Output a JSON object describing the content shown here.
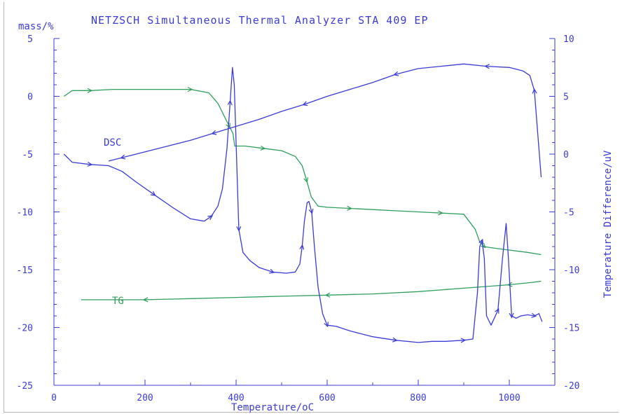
{
  "chart_data": {
    "type": "line",
    "title": "NETZSCH Simultaneous Thermal Analyzer STA 409 EP",
    "xlabel": "Temperature/oC",
    "ylabel_left": "mass/%",
    "ylabel_right": "Temperature Difference/uV",
    "xlim": [
      0,
      1100
    ],
    "ylim_left": [
      -25,
      5
    ],
    "ylim_right": [
      -20,
      10
    ],
    "x_ticks": [
      "0",
      "200",
      "400",
      "600",
      "800",
      "1000"
    ],
    "y_left_ticks": [
      "5",
      "0",
      "-5",
      "-10",
      "-15",
      "-20",
      "-25"
    ],
    "y_right_ticks": [
      "10",
      "5",
      "0",
      "-5",
      "-10",
      "-15",
      "-20"
    ],
    "grid": false,
    "colors": {
      "tg": "#2e9f5c",
      "dsc": "#3b3bd6",
      "axis": "#3b3bd6"
    },
    "annotations": [
      "DSC",
      "TG"
    ],
    "series": [
      {
        "name": "TG",
        "axis": "left",
        "segments": [
          {
            "x": [
              22,
              40,
              80,
              130,
              200,
              240,
              300,
              340,
              360,
              375,
              385,
              393,
              397,
              420,
              460,
              500,
              530,
              545,
              555,
              565,
              580,
              600,
              650,
              700,
              750,
              800,
              850,
              900,
              925,
              935,
              945,
              960,
              1000,
              1040,
              1070
            ],
            "y": [
              0.0,
              0.5,
              0.5,
              0.6,
              0.6,
              0.6,
              0.6,
              0.3,
              -0.6,
              -1.8,
              -2.6,
              -3.2,
              -4.3,
              -4.3,
              -4.5,
              -4.7,
              -5.2,
              -6.0,
              -7.3,
              -8.7,
              -9.5,
              -9.6,
              -9.7,
              -9.8,
              -9.9,
              -10.0,
              -10.1,
              -10.2,
              -11.5,
              -12.6,
              -13.0,
              -13.1,
              -13.3,
              -13.5,
              -13.7
            ]
          },
          {
            "x": [
              1070,
              1050,
              1000,
              900,
              800,
              700,
              600,
              500,
              400,
              300,
              200,
              100,
              60
            ],
            "y": [
              -16.0,
              -16.1,
              -16.3,
              -16.6,
              -16.9,
              -17.1,
              -17.2,
              -17.3,
              -17.4,
              -17.5,
              -17.6,
              -17.6,
              -17.6
            ]
          }
        ]
      },
      {
        "name": "DSC",
        "axis": "right",
        "segments": [
          {
            "x": [
              22,
              40,
              80,
              120,
              150,
              180,
              220,
              260,
              300,
              330,
              345,
              360,
              370,
              380,
              387,
              392,
              396,
              400,
              406,
              415,
              430,
              450,
              480,
              510,
              530,
              540,
              545,
              550,
              556,
              560,
              566,
              572,
              580,
              590,
              600,
              620,
              650,
              700,
              750,
              800,
              830,
              860,
              900,
              920,
              930,
              935,
              940,
              945,
              950,
              960,
              975,
              985,
              993,
              998,
              1005,
              1015,
              1025,
              1040,
              1055,
              1065,
              1072
            ],
            "y": [
              0.0,
              -0.7,
              -0.9,
              -1.0,
              -1.5,
              -2.4,
              -3.5,
              -4.6,
              -5.6,
              -5.8,
              -5.4,
              -4.5,
              -3.0,
              0.5,
              4.5,
              7.5,
              6.0,
              1.0,
              -6.5,
              -8.5,
              -9.2,
              -9.8,
              -10.2,
              -10.3,
              -10.2,
              -9.5,
              -8.0,
              -5.8,
              -4.2,
              -4.1,
              -5.0,
              -8.0,
              -11.5,
              -13.8,
              -14.8,
              -14.9,
              -15.3,
              -15.8,
              -16.1,
              -16.3,
              -16.2,
              -16.2,
              -16.1,
              -16.0,
              -12.0,
              -8.0,
              -7.5,
              -9.0,
              -14.0,
              -14.8,
              -13.5,
              -9.0,
              -6.0,
              -9.0,
              -14.0,
              -14.2,
              -14.0,
              -13.9,
              -14.0,
              -13.8,
              -14.5
            ]
          },
          {
            "x": [
              1070,
              1062,
              1055,
              1045,
              1030,
              1000,
              950,
              900,
              850,
              800,
              750,
              700,
              650,
              600,
              550,
              500,
              450,
              400,
              350,
              300,
              250,
              200,
              150,
              120
            ],
            "y": [
              -2.0,
              2.0,
              5.5,
              6.8,
              7.2,
              7.5,
              7.6,
              7.8,
              7.6,
              7.4,
              6.9,
              6.2,
              5.6,
              5.0,
              4.3,
              3.7,
              3.0,
              2.4,
              1.8,
              1.2,
              0.7,
              0.2,
              -0.3,
              -0.6
            ]
          }
        ]
      }
    ]
  }
}
